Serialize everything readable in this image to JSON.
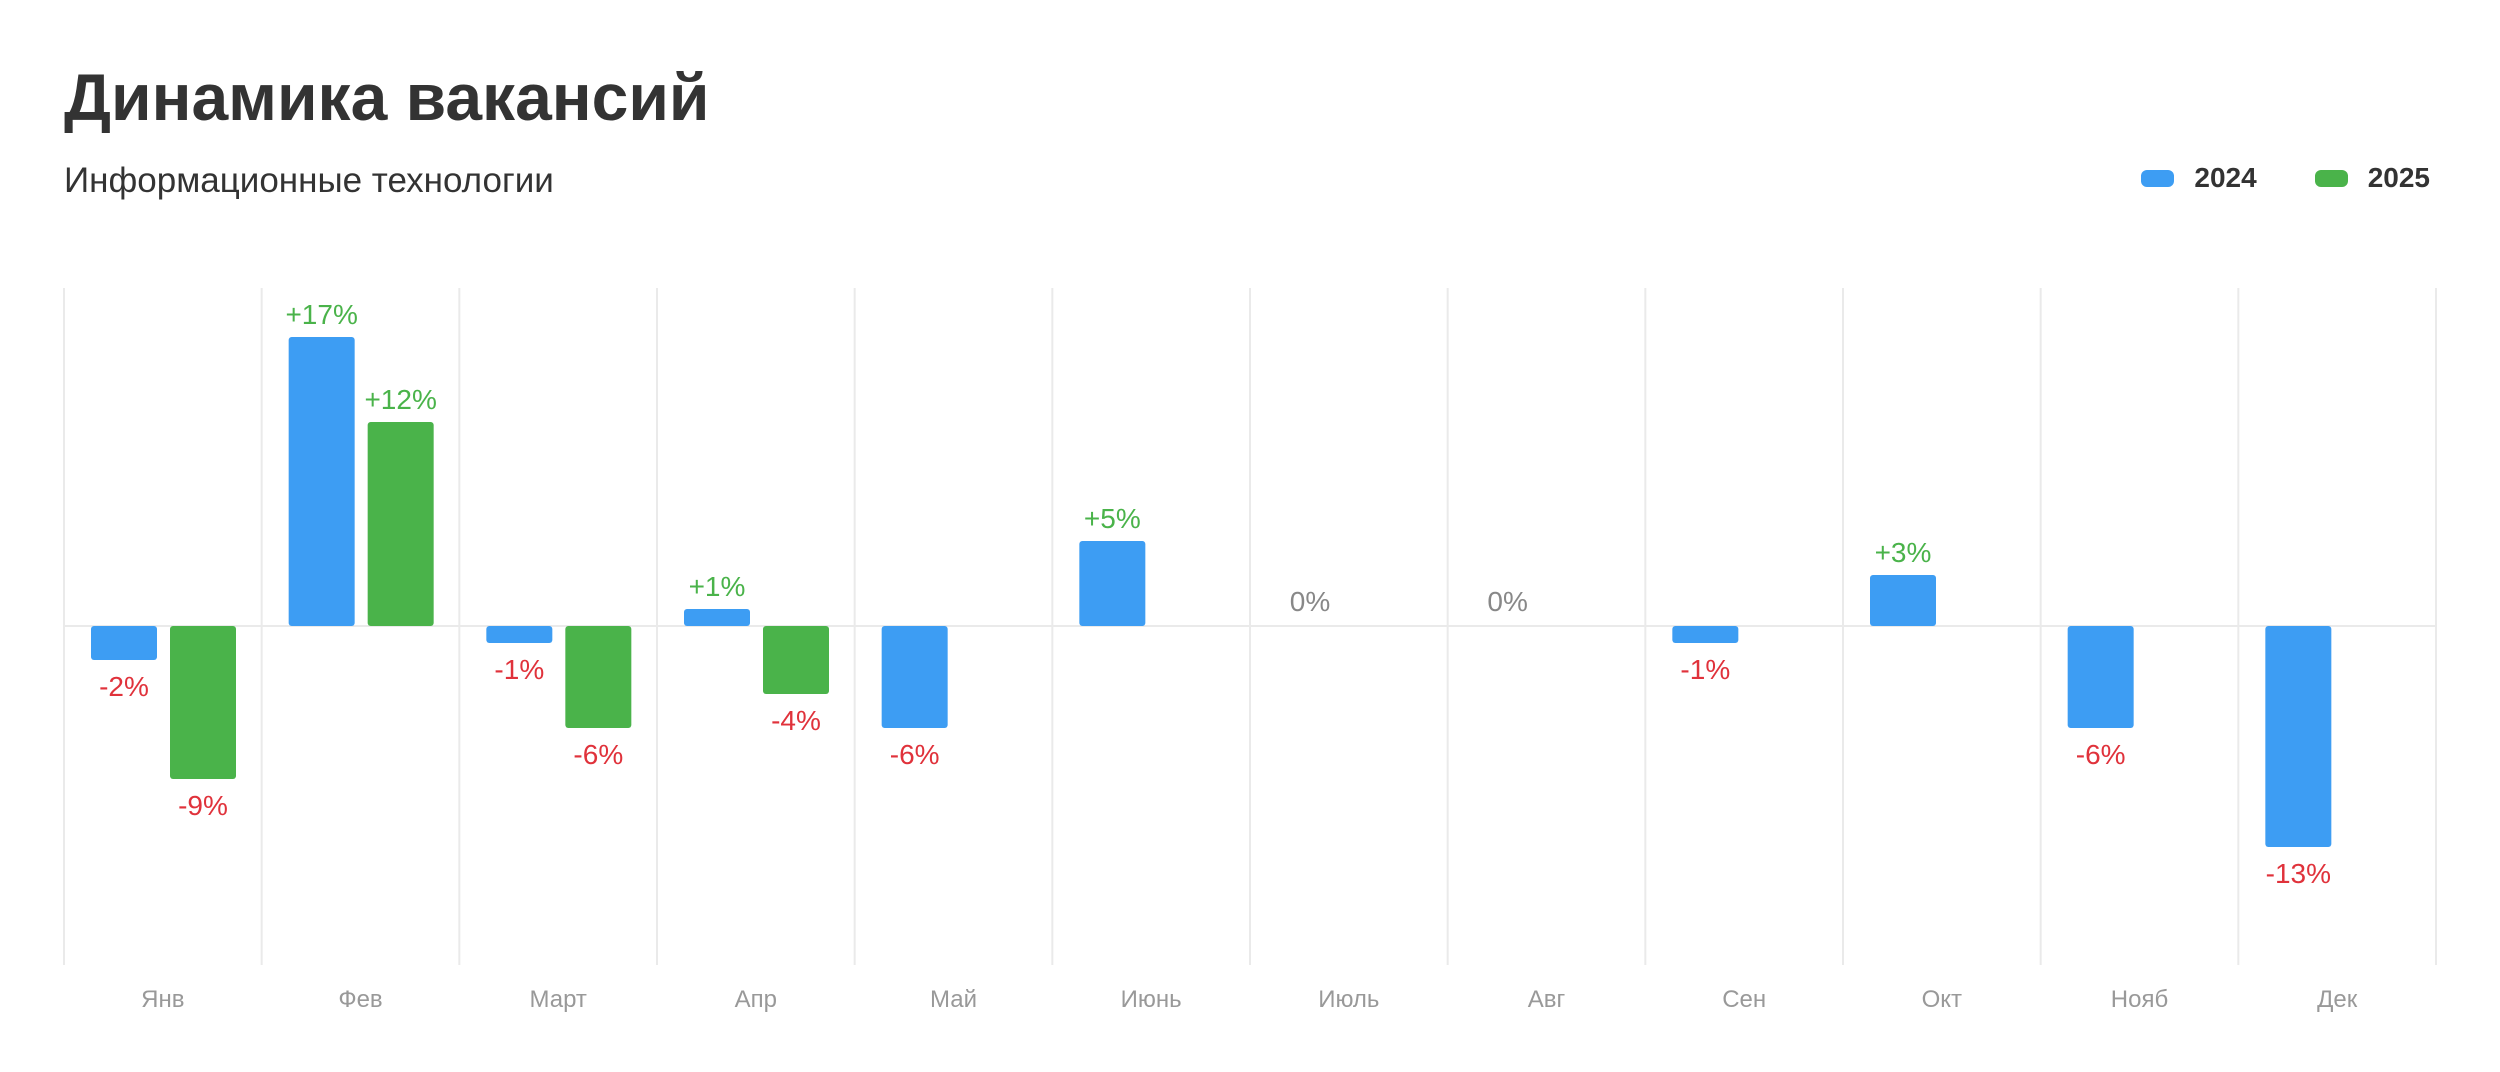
{
  "header": {
    "title": "Динамика вакансий",
    "subtitle": "Информационные технологии"
  },
  "legend": [
    {
      "label": "2024",
      "color": "#3d9df3"
    },
    {
      "label": "2025",
      "color": "#4ab34a"
    }
  ],
  "colors": {
    "positive_label": "#4ab34a",
    "negative_label": "#e0323b",
    "zero_label": "#888888",
    "grid": "#eaeaea",
    "tick": "#999999"
  },
  "chart_data": {
    "type": "bar",
    "title": "Динамика вакансий",
    "subtitle": "Информационные технологии",
    "categories": [
      "Янв",
      "Фев",
      "Март",
      "Апр",
      "Май",
      "Июнь",
      "Июль",
      "Авг",
      "Сен",
      "Окт",
      "Нояб",
      "Дек"
    ],
    "series": [
      {
        "name": "2024",
        "color": "#3d9df3",
        "values": [
          -2,
          17,
          -1,
          1,
          -6,
          5,
          0,
          0,
          -1,
          3,
          -6,
          -13
        ],
        "labels": [
          "-2%",
          "+17%",
          "-1%",
          "+1%",
          "-6%",
          "+5%",
          "0%",
          "0%",
          "-1%",
          "+3%",
          "-6%",
          "-13%"
        ]
      },
      {
        "name": "2025",
        "color": "#4ab34a",
        "values": [
          -9,
          12,
          -6,
          -4,
          null,
          null,
          null,
          null,
          null,
          null,
          null,
          null
        ],
        "labels": [
          "-9%",
          "+12%",
          "-6%",
          "-4%",
          null,
          null,
          null,
          null,
          null,
          null,
          null,
          null
        ]
      }
    ],
    "ylim": [
      -20,
      20
    ],
    "grid": true,
    "legend_position": "top-right"
  }
}
